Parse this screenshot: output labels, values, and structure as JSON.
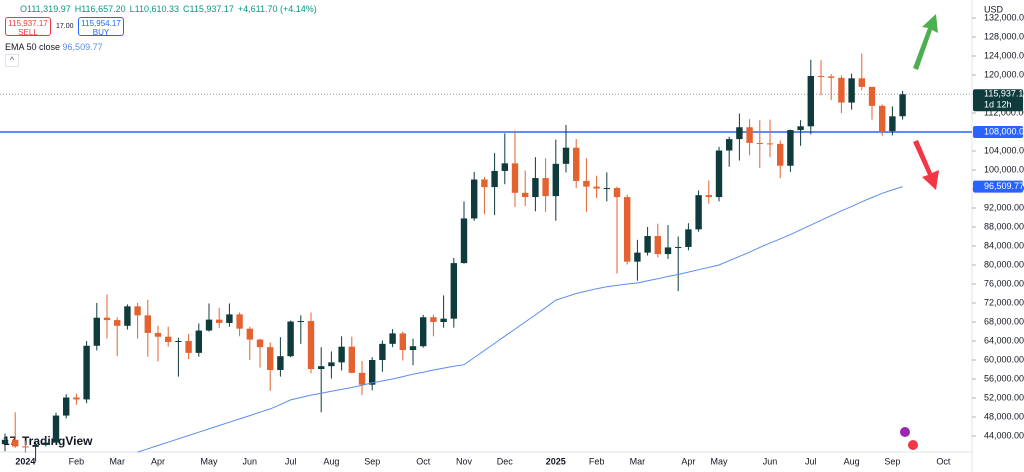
{
  "chart_data": {
    "type": "candlestick",
    "categories": [
      null,
      null,
      "2024",
      null,
      null,
      null,
      null,
      "Feb",
      null,
      null,
      null,
      "Mar",
      null,
      null,
      null,
      "Apr",
      null,
      null,
      null,
      null,
      "May",
      null,
      null,
      null,
      "Jun",
      null,
      null,
      null,
      "Jul",
      null,
      null,
      null,
      "Aug",
      null,
      null,
      null,
      "Sep",
      null,
      null,
      null,
      null,
      "Oct",
      null,
      null,
      null,
      "Nov",
      null,
      null,
      null,
      "Dec",
      null,
      null,
      null,
      null,
      "2025",
      null,
      null,
      null,
      "Feb",
      null,
      null,
      null,
      "Mar",
      null,
      null,
      null,
      null,
      "Apr",
      null,
      null,
      "May",
      null,
      null,
      null,
      null,
      "Jun",
      null,
      null,
      null,
      "Jul",
      null,
      null,
      null,
      "Aug",
      null,
      null,
      null,
      "Sep",
      null,
      null,
      null,
      null,
      "Oct"
    ],
    "open": [
      42300,
      43200,
      41800,
      41700,
      42100,
      42600,
      48300,
      52100,
      51700,
      63000,
      68900,
      68400,
      67200,
      71300,
      69400,
      65700,
      64900,
      63800,
      64000,
      61500,
      66200,
      68500,
      67800,
      69600,
      66600,
      64300,
      62700,
      57900,
      60800,
      68100,
      68200,
      58100,
      58700,
      59500,
      62800,
      57300,
      54800,
      60000,
      63400,
      65600,
      62100,
      62900,
      69000,
      68000,
      68700,
      80400,
      89800,
      98000,
      96400,
      99800,
      101400,
      95200,
      94300,
      98300,
      94500,
      101300,
      104700,
      97700,
      96500,
      96100,
      96200,
      94300,
      80700,
      82600,
      86100,
      82300,
      83700,
      83800,
      87500,
      94700,
      94300,
      104100,
      106500,
      109000,
      105700,
      105600,
      105500,
      100900,
      108400,
      109200,
      119800,
      119700,
      119400,
      114200,
      119300,
      117500,
      113500,
      108200,
      111319.97,
      null,
      null,
      null,
      null
    ],
    "high": [
      44500,
      49000,
      43000,
      42800,
      43800,
      48900,
      52800,
      52900,
      64000,
      72000,
      73800,
      69000,
      71700,
      72000,
      72700,
      67200,
      67000,
      64700,
      65500,
      67700,
      71900,
      71000,
      71900,
      70000,
      67000,
      64500,
      63700,
      64800,
      68300,
      69400,
      70000,
      62700,
      61800,
      65000,
      64900,
      59800,
      60600,
      64100,
      66500,
      66000,
      64500,
      69500,
      69500,
      73600,
      81500,
      93400,
      99600,
      98500,
      103600,
      107700,
      108300,
      99900,
      102700,
      102500,
      106400,
      109500,
      106500,
      102500,
      98800,
      99500,
      96500,
      94800,
      85300,
      88000,
      88700,
      88400,
      86000,
      88800,
      95700,
      97800,
      104900,
      107000,
      111900,
      110700,
      110500,
      110600,
      106200,
      108500,
      110500,
      123200,
      123100,
      120200,
      119900,
      120300,
      124500,
      117500,
      113800,
      113400,
      116657.2,
      null,
      null,
      null,
      null
    ],
    "low": [
      40800,
      41500,
      40500,
      38600,
      41800,
      42300,
      47700,
      50600,
      50900,
      62000,
      64500,
      60800,
      66400,
      64500,
      60700,
      59700,
      62800,
      56500,
      60200,
      60700,
      66000,
      66700,
      67000,
      65000,
      60000,
      58400,
      53500,
      56500,
      60600,
      63400,
      57200,
      49000,
      56100,
      57800,
      57200,
      52600,
      53600,
      57500,
      62700,
      59900,
      58900,
      62600,
      65000,
      66800,
      66800,
      80300,
      89300,
      90700,
      90500,
      97000,
      92200,
      92400,
      91300,
      91200,
      89300,
      99500,
      96200,
      91200,
      94100,
      93400,
      78200,
      80100,
      76700,
      82000,
      81600,
      81300,
      74500,
      83100,
      87000,
      92900,
      93400,
      100700,
      102000,
      103100,
      100400,
      102700,
      98300,
      99600,
      105100,
      107500,
      115700,
      114700,
      112000,
      112700,
      116800,
      110600,
      107200,
      107300,
      110610.33,
      null,
      null,
      null,
      null
    ],
    "close": [
      43200,
      41800,
      41700,
      42100,
      42600,
      48300,
      52100,
      51700,
      63000,
      68900,
      68400,
      67200,
      71300,
      69400,
      65700,
      64900,
      63800,
      64000,
      61500,
      66200,
      68500,
      67800,
      69600,
      66600,
      64300,
      62700,
      57900,
      60800,
      68100,
      68200,
      58100,
      58700,
      59500,
      62800,
      57300,
      54800,
      60000,
      63400,
      65600,
      62100,
      62900,
      69000,
      68000,
      68700,
      80400,
      89800,
      98000,
      96400,
      99800,
      101400,
      95200,
      94300,
      98300,
      94500,
      101300,
      104700,
      97700,
      96500,
      96100,
      96200,
      94300,
      80700,
      82600,
      86100,
      82300,
      83700,
      83800,
      87500,
      94700,
      94300,
      104100,
      106500,
      109000,
      105700,
      105600,
      105500,
      100900,
      108400,
      109200,
      119800,
      119700,
      119400,
      114200,
      119300,
      117500,
      113500,
      108200,
      111300,
      115937.17,
      null,
      null,
      null,
      null
    ],
    "up_color": "#0f3b3d",
    "down_color": "#e4622f",
    "series": [
      {
        "name": "EMA 50 close",
        "color": "#5b8def",
        "values": [
          null,
          null,
          null,
          null,
          null,
          null,
          null,
          null,
          null,
          null,
          null,
          null,
          null,
          40600,
          41300,
          42000,
          42700,
          43400,
          44100,
          44800,
          45500,
          46200,
          46900,
          47600,
          48300,
          49000,
          49700,
          50600,
          51600,
          52100,
          52600,
          53000,
          53400,
          53800,
          54200,
          54700,
          55200,
          55600,
          56000,
          56500,
          57000,
          57400,
          57900,
          58300,
          58700,
          59000,
          60500,
          62000,
          63500,
          65000,
          66500,
          68000,
          69500,
          71000,
          72600,
          73300,
          74000,
          74500,
          75000,
          75400,
          75700,
          76000,
          76200,
          76700,
          77100,
          77600,
          78000,
          78500,
          79000,
          79500,
          80000,
          80900,
          81800,
          82700,
          83700,
          84600,
          85500,
          86400,
          87400,
          88400,
          89400,
          90400,
          91400,
          92300,
          93300,
          94200,
          95100,
          95800,
          96509.77,
          null,
          null,
          null,
          null
        ]
      }
    ],
    "ema_last": {
      "value": 96509.77,
      "label": "96,509.77"
    },
    "hline": {
      "value": 108000,
      "label": "108,000.00",
      "color": "#2962ff"
    },
    "last_price": {
      "value": 115937.17,
      "label": "115,937.17",
      "countdown": "1d 12h"
    },
    "ylim": [
      40630,
      135790
    ],
    "yticks": [
      {
        "value": 44000,
        "label": "44,000.00"
      },
      {
        "value": 48000,
        "label": "48,000.00"
      },
      {
        "value": 52000,
        "label": "52,000.00"
      },
      {
        "value": 56000,
        "label": "56,000.00"
      },
      {
        "value": 60000,
        "label": "60,000.00"
      },
      {
        "value": 64000,
        "label": "64,000.00"
      },
      {
        "value": 68000,
        "label": "68,000.00"
      },
      {
        "value": 72000,
        "label": "72,000.00"
      },
      {
        "value": 76000,
        "label": "76,000.00"
      },
      {
        "value": 80000,
        "label": "80,000.00"
      },
      {
        "value": 84000,
        "label": "84,000.00"
      },
      {
        "value": 88000,
        "label": "88,000.00"
      },
      {
        "value": 92000,
        "label": "92,000.00"
      },
      {
        "value": 96000,
        "label": "96,000.00"
      },
      {
        "value": 100000,
        "label": "100,000.00"
      },
      {
        "value": 104000,
        "label": "104,000.00"
      },
      {
        "value": 112000,
        "label": "112,000.00"
      },
      {
        "value": 116000,
        "label": "116,000.00"
      },
      {
        "value": 120000,
        "label": "120,000.00"
      },
      {
        "value": 124000,
        "label": "124,000.00"
      },
      {
        "value": 128000,
        "label": "128,000.00"
      },
      {
        "value": 132000,
        "label": "132,000.00"
      }
    ],
    "grid": false,
    "currency": "USD",
    "ohlc_legend": [
      "O111,319.97",
      "H116,657.20",
      "L110,610.33",
      "C115,937.17",
      "+4,611.70 (+4.14%)"
    ],
    "trade": {
      "sell_price": "115,937.17",
      "sell": "SELL",
      "spread": "17.00",
      "buy_price": "115,954.17",
      "buy": "BUY"
    },
    "logo": "TradingView"
  }
}
